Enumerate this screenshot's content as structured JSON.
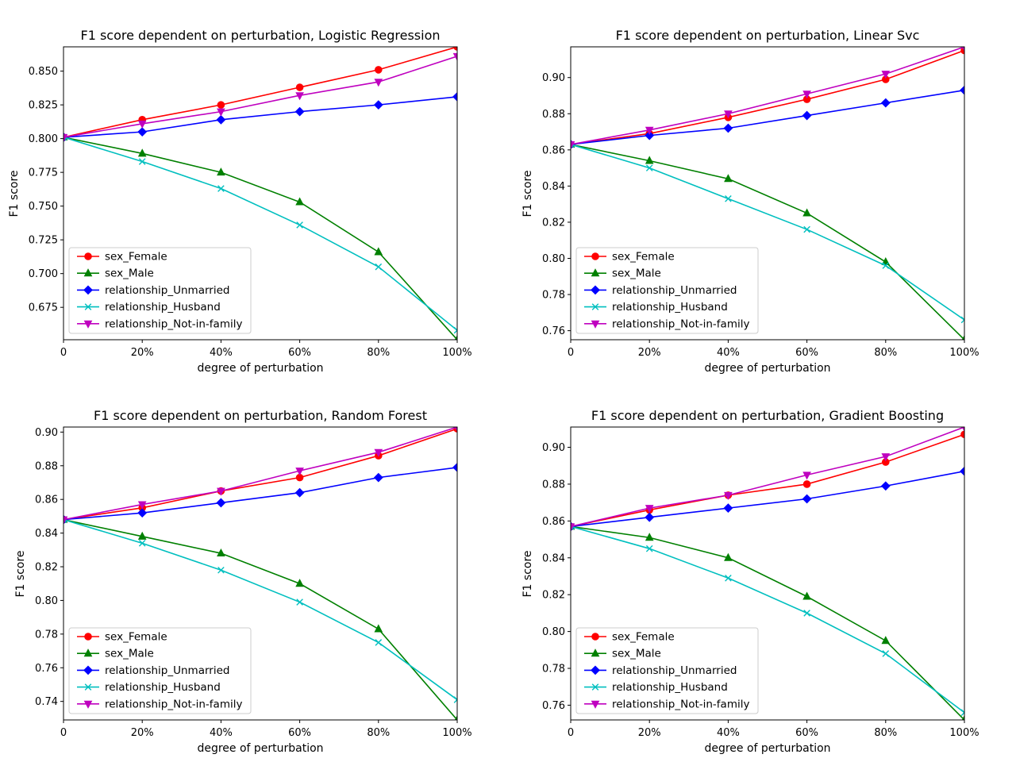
{
  "chart_data": [
    {
      "type": "line",
      "title": "F1 score dependent on perturbation, Logistic Regression",
      "xlabel": "degree of perturbation",
      "ylabel": "F1 score",
      "x": [
        0,
        20,
        40,
        60,
        80,
        100
      ],
      "xticks": [
        0,
        20,
        40,
        60,
        80,
        100
      ],
      "xtick_labels": [
        "0",
        "20%",
        "40%",
        "60%",
        "80%",
        "100%"
      ],
      "ylim": [
        0.651,
        0.868
      ],
      "yticks": [
        0.675,
        0.7,
        0.725,
        0.75,
        0.775,
        0.8,
        0.825,
        0.85
      ],
      "ytick_labels": [
        "0.675",
        "0.700",
        "0.725",
        "0.750",
        "0.775",
        "0.800",
        "0.825",
        "0.850"
      ],
      "legend_position": "lower-left",
      "series": [
        {
          "name": "sex_Female",
          "color": "#ff0000",
          "marker": "circle",
          "values": [
            0.801,
            0.814,
            0.825,
            0.838,
            0.851,
            0.868
          ]
        },
        {
          "name": "sex_Male",
          "color": "#008000",
          "marker": "triangle-up",
          "values": [
            0.801,
            0.789,
            0.775,
            0.753,
            0.716,
            0.651
          ]
        },
        {
          "name": "relationship_Unmarried",
          "color": "#0000ff",
          "marker": "diamond",
          "values": [
            0.801,
            0.805,
            0.814,
            0.82,
            0.825,
            0.831
          ]
        },
        {
          "name": "relationship_Husband",
          "color": "#00bfbf",
          "marker": "x",
          "values": [
            0.801,
            0.783,
            0.763,
            0.736,
            0.705,
            0.658
          ]
        },
        {
          "name": "relationship_Not-in-family",
          "color": "#bf00bf",
          "marker": "triangle-down",
          "values": [
            0.801,
            0.811,
            0.82,
            0.832,
            0.842,
            0.861
          ]
        }
      ]
    },
    {
      "type": "line",
      "title": "F1 score dependent on perturbation, Linear Svc",
      "xlabel": "degree of perturbation",
      "ylabel": "F1 score",
      "x": [
        0,
        20,
        40,
        60,
        80,
        100
      ],
      "xticks": [
        0,
        20,
        40,
        60,
        80,
        100
      ],
      "xtick_labels": [
        "0",
        "20%",
        "40%",
        "60%",
        "80%",
        "100%"
      ],
      "ylim": [
        0.755,
        0.917
      ],
      "yticks": [
        0.76,
        0.78,
        0.8,
        0.82,
        0.84,
        0.86,
        0.88,
        0.9
      ],
      "ytick_labels": [
        "0.76",
        "0.78",
        "0.80",
        "0.82",
        "0.84",
        "0.86",
        "0.88",
        "0.90"
      ],
      "legend_position": "lower-left",
      "series": [
        {
          "name": "sex_Female",
          "color": "#ff0000",
          "marker": "circle",
          "values": [
            0.863,
            0.869,
            0.878,
            0.888,
            0.899,
            0.915
          ]
        },
        {
          "name": "sex_Male",
          "color": "#008000",
          "marker": "triangle-up",
          "values": [
            0.863,
            0.854,
            0.844,
            0.825,
            0.798,
            0.755
          ]
        },
        {
          "name": "relationship_Unmarried",
          "color": "#0000ff",
          "marker": "diamond",
          "values": [
            0.863,
            0.868,
            0.872,
            0.879,
            0.886,
            0.893
          ]
        },
        {
          "name": "relationship_Husband",
          "color": "#00bfbf",
          "marker": "x",
          "values": [
            0.863,
            0.85,
            0.833,
            0.816,
            0.796,
            0.766
          ]
        },
        {
          "name": "relationship_Not-in-family",
          "color": "#bf00bf",
          "marker": "triangle-down",
          "values": [
            0.863,
            0.871,
            0.88,
            0.891,
            0.902,
            0.917
          ]
        }
      ]
    },
    {
      "type": "line",
      "title": "F1 score dependent on perturbation, Random Forest",
      "xlabel": "degree of perturbation",
      "ylabel": "F1 score",
      "x": [
        0,
        20,
        40,
        60,
        80,
        100
      ],
      "xticks": [
        0,
        20,
        40,
        60,
        80,
        100
      ],
      "xtick_labels": [
        "0",
        "20%",
        "40%",
        "60%",
        "80%",
        "100%"
      ],
      "ylim": [
        0.729,
        0.903
      ],
      "yticks": [
        0.74,
        0.76,
        0.78,
        0.8,
        0.82,
        0.84,
        0.86,
        0.88,
        0.9
      ],
      "ytick_labels": [
        "0.74",
        "0.76",
        "0.78",
        "0.80",
        "0.82",
        "0.84",
        "0.86",
        "0.88",
        "0.90"
      ],
      "legend_position": "lower-left",
      "series": [
        {
          "name": "sex_Female",
          "color": "#ff0000",
          "marker": "circle",
          "values": [
            0.848,
            0.855,
            0.865,
            0.873,
            0.886,
            0.902
          ]
        },
        {
          "name": "sex_Male",
          "color": "#008000",
          "marker": "triangle-up",
          "values": [
            0.848,
            0.838,
            0.828,
            0.81,
            0.783,
            0.729
          ]
        },
        {
          "name": "relationship_Unmarried",
          "color": "#0000ff",
          "marker": "diamond",
          "values": [
            0.848,
            0.852,
            0.858,
            0.864,
            0.873,
            0.879
          ]
        },
        {
          "name": "relationship_Husband",
          "color": "#00bfbf",
          "marker": "x",
          "values": [
            0.848,
            0.834,
            0.818,
            0.799,
            0.775,
            0.741
          ]
        },
        {
          "name": "relationship_Not-in-family",
          "color": "#bf00bf",
          "marker": "triangle-down",
          "values": [
            0.848,
            0.857,
            0.865,
            0.877,
            0.888,
            0.903
          ]
        }
      ]
    },
    {
      "type": "line",
      "title": "F1 score dependent on perturbation, Gradient Boosting",
      "xlabel": "degree of perturbation",
      "ylabel": "F1 score",
      "x": [
        0,
        20,
        40,
        60,
        80,
        100
      ],
      "xticks": [
        0,
        20,
        40,
        60,
        80,
        100
      ],
      "xtick_labels": [
        "0",
        "20%",
        "40%",
        "60%",
        "80%",
        "100%"
      ],
      "ylim": [
        0.752,
        0.911
      ],
      "yticks": [
        0.76,
        0.78,
        0.8,
        0.82,
        0.84,
        0.86,
        0.88,
        0.9
      ],
      "ytick_labels": [
        "0.76",
        "0.78",
        "0.80",
        "0.82",
        "0.84",
        "0.86",
        "0.88",
        "0.90"
      ],
      "legend_position": "lower-left",
      "series": [
        {
          "name": "sex_Female",
          "color": "#ff0000",
          "marker": "circle",
          "values": [
            0.857,
            0.866,
            0.874,
            0.88,
            0.892,
            0.907
          ]
        },
        {
          "name": "sex_Male",
          "color": "#008000",
          "marker": "triangle-up",
          "values": [
            0.857,
            0.851,
            0.84,
            0.819,
            0.795,
            0.752
          ]
        },
        {
          "name": "relationship_Unmarried",
          "color": "#0000ff",
          "marker": "diamond",
          "values": [
            0.857,
            0.862,
            0.867,
            0.872,
            0.879,
            0.887
          ]
        },
        {
          "name": "relationship_Husband",
          "color": "#00bfbf",
          "marker": "x",
          "values": [
            0.857,
            0.845,
            0.829,
            0.81,
            0.788,
            0.756
          ]
        },
        {
          "name": "relationship_Not-in-family",
          "color": "#bf00bf",
          "marker": "triangle-down",
          "values": [
            0.857,
            0.867,
            0.874,
            0.885,
            0.895,
            0.911
          ]
        }
      ]
    }
  ]
}
